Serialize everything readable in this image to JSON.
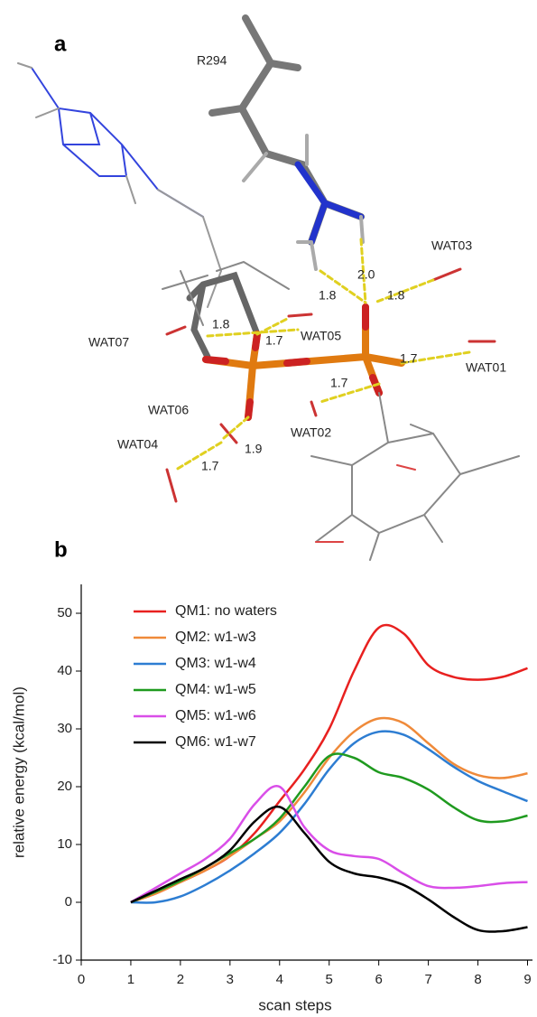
{
  "panel_a": {
    "label": "a",
    "residue": "R294",
    "waters": [
      "WAT03",
      "WAT07",
      "WAT05",
      "WAT01",
      "WAT06",
      "WAT02",
      "WAT04"
    ],
    "distances": [
      "2.0",
      "1.8",
      "1.8",
      "1.8",
      "1.7",
      "1.7",
      "1.7",
      "1.9",
      "1.7"
    ]
  },
  "chart_data": {
    "type": "line",
    "panel_label": "b",
    "x_label": "scan steps",
    "y_label": "relative energy (kcal/mol)",
    "x": [
      1,
      1.5,
      2,
      2.5,
      3,
      3.5,
      4,
      4.5,
      5,
      5.5,
      6,
      6.5,
      7,
      7.5,
      8,
      8.5,
      9
    ],
    "series": [
      {
        "name": "QM1: no waters",
        "color": "#e8201f",
        "values": [
          0,
          1.5,
          3.5,
          5.5,
          8,
          12,
          17.5,
          23,
          30,
          40,
          47.5,
          46.5,
          41,
          39,
          38.5,
          39,
          40.5
        ]
      },
      {
        "name": "QM2: w1-w3",
        "color": "#ef8a3a",
        "values": [
          0,
          1.5,
          3.5,
          5.5,
          8,
          11,
          14,
          19,
          25,
          29.5,
          31.8,
          31,
          27.5,
          24,
          22,
          21.5,
          22.3
        ]
      },
      {
        "name": "QM3: w1-w4",
        "color": "#2d7dd2",
        "values": [
          0,
          0,
          1,
          3,
          5.5,
          8.5,
          12,
          17,
          23,
          27.5,
          29.5,
          29,
          26.5,
          23.5,
          21,
          19.2,
          17.5
        ]
      },
      {
        "name": "QM4: w1-w5",
        "color": "#1f9a1f",
        "values": [
          0,
          1.8,
          3.7,
          6,
          8.5,
          11,
          14.5,
          20,
          25.3,
          25,
          22.5,
          21.5,
          19.5,
          16.5,
          14.2,
          14,
          15
        ]
      },
      {
        "name": "QM5: w1-w6",
        "color": "#d94ee8",
        "values": [
          0,
          2.5,
          5,
          7.5,
          11,
          17,
          20,
          13,
          9,
          8,
          7.5,
          5,
          2.8,
          2.5,
          2.8,
          3.3,
          3.5
        ]
      },
      {
        "name": "QM6: w1-w7",
        "color": "#000000",
        "values": [
          0,
          2,
          4,
          6,
          9,
          14,
          16.5,
          12,
          7,
          5,
          4.3,
          3,
          0.5,
          -2.5,
          -4.8,
          -5,
          -4.3
        ]
      }
    ],
    "xlim": [
      0,
      9.1
    ],
    "ylim": [
      -10,
      55
    ],
    "xticks": [
      0,
      1,
      2,
      3,
      4,
      5,
      6,
      7,
      8,
      9
    ],
    "yticks": [
      -10,
      0,
      10,
      20,
      30,
      40,
      50
    ],
    "legend": "upper left"
  }
}
